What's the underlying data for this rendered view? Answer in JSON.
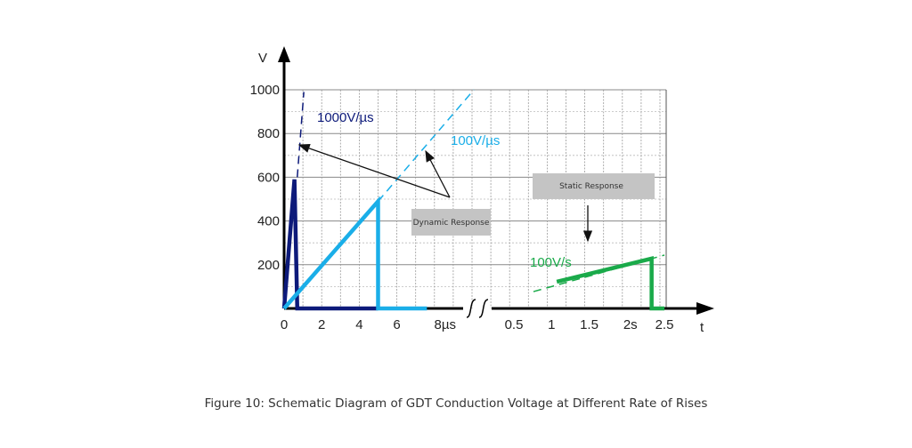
{
  "caption": "Figure 10: Schematic Diagram of GDT Conduction Voltage at Different Rate of Rises",
  "chart_data": {
    "type": "line",
    "ylabel": "V",
    "xlabel": "t",
    "ylim": [
      0,
      1000
    ],
    "yticks": [
      "200",
      "400",
      "600",
      "800",
      "1000"
    ],
    "ytick_values": [
      200,
      400,
      600,
      800,
      1000
    ],
    "grid": true,
    "left_panel": {
      "unit": "µs",
      "xlim": [
        0,
        10
      ],
      "xticks": [
        "0",
        "2",
        "4",
        "6",
        "8µs"
      ],
      "xtick_values": [
        0,
        2,
        4,
        6,
        8
      ]
    },
    "right_panel": {
      "unit": "s",
      "xlim": [
        0,
        2.5
      ],
      "xticks": [
        "0.5",
        "1",
        "1.5",
        "2s",
        "2.5"
      ],
      "xtick_values": [
        0.5,
        1,
        1.5,
        2,
        2.5
      ]
    },
    "series": [
      {
        "label": "1000V/µs",
        "panel": "left",
        "color": "#0d1a7a",
        "points": [
          [
            0,
            0
          ],
          [
            0.55,
            590
          ],
          [
            0.7,
            0
          ],
          [
            5,
            0
          ]
        ],
        "dashed": [
          [
            0.7,
            600
          ],
          [
            1.05,
            990
          ]
        ]
      },
      {
        "label": "100V/µs",
        "panel": "left",
        "color": "#1aaee8",
        "points": [
          [
            0,
            0
          ],
          [
            5,
            490
          ],
          [
            5,
            0
          ],
          [
            7.6,
            0
          ]
        ],
        "dashed": [
          [
            5,
            490
          ],
          [
            10.1,
            1000
          ]
        ]
      },
      {
        "label": "100V/s",
        "panel": "right",
        "color": "#1aaa4a",
        "points": [
          [
            1.07,
            122
          ],
          [
            2.33,
            228
          ],
          [
            2.33,
            0
          ],
          [
            2.5,
            0
          ]
        ],
        "dashed": [
          [
            0.76,
            77
          ],
          [
            2.5,
            244
          ]
        ]
      }
    ],
    "annotations": [
      {
        "text": "Dynamic Response",
        "arrow_targets": [
          "1000V/µs",
          "100V/µs"
        ]
      },
      {
        "text": "Static Response",
        "arrow_targets": [
          "100V/s"
        ]
      }
    ]
  }
}
